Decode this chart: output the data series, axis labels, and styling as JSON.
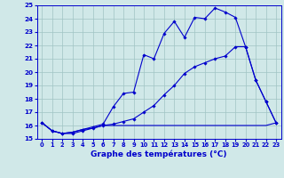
{
  "title": "Graphe des températures (°C)",
  "xlim": [
    -0.5,
    23.5
  ],
  "ylim": [
    15,
    25
  ],
  "yticks": [
    15,
    16,
    17,
    18,
    19,
    20,
    21,
    22,
    23,
    24,
    25
  ],
  "xticks": [
    0,
    1,
    2,
    3,
    4,
    5,
    6,
    7,
    8,
    9,
    10,
    11,
    12,
    13,
    14,
    15,
    16,
    17,
    18,
    19,
    20,
    21,
    22,
    23
  ],
  "bg_color": "#d0e8e8",
  "line_color": "#0000cc",
  "grid_color": "#a0c4c4",
  "series1_x": [
    0,
    1,
    2,
    3,
    4,
    5,
    6,
    7,
    8,
    9,
    10,
    11,
    12,
    13,
    14,
    15,
    16,
    17,
    18,
    19,
    20,
    21,
    22,
    23
  ],
  "series1_y": [
    16.2,
    15.6,
    15.4,
    15.4,
    15.6,
    15.8,
    16.0,
    16.1,
    16.3,
    16.5,
    17.0,
    17.5,
    18.3,
    19.0,
    19.9,
    20.4,
    20.7,
    21.0,
    21.2,
    21.9,
    21.9,
    19.4,
    17.8,
    16.2
  ],
  "series2_x": [
    0,
    1,
    2,
    3,
    4,
    5,
    6,
    7,
    8,
    9,
    10,
    11,
    12,
    13,
    14,
    15,
    16,
    17,
    18,
    19,
    20,
    21,
    22,
    23
  ],
  "series2_y": [
    16.2,
    15.6,
    15.4,
    15.5,
    15.7,
    15.9,
    16.1,
    17.4,
    18.4,
    18.5,
    21.3,
    21.0,
    22.9,
    23.8,
    22.6,
    24.1,
    24.0,
    24.8,
    24.5,
    24.1,
    21.9,
    19.4,
    17.8,
    16.2
  ],
  "series3_x": [
    0,
    1,
    2,
    3,
    4,
    5,
    6,
    7,
    8,
    9,
    10,
    11,
    12,
    13,
    14,
    15,
    16,
    17,
    18,
    19,
    20,
    21,
    22,
    23
  ],
  "series3_y": [
    16.2,
    15.6,
    15.4,
    15.5,
    15.7,
    15.8,
    16.0,
    16.0,
    16.0,
    16.0,
    16.0,
    16.0,
    16.0,
    16.0,
    16.0,
    16.0,
    16.0,
    16.0,
    16.0,
    16.0,
    16.0,
    16.0,
    16.0,
    16.2
  ]
}
